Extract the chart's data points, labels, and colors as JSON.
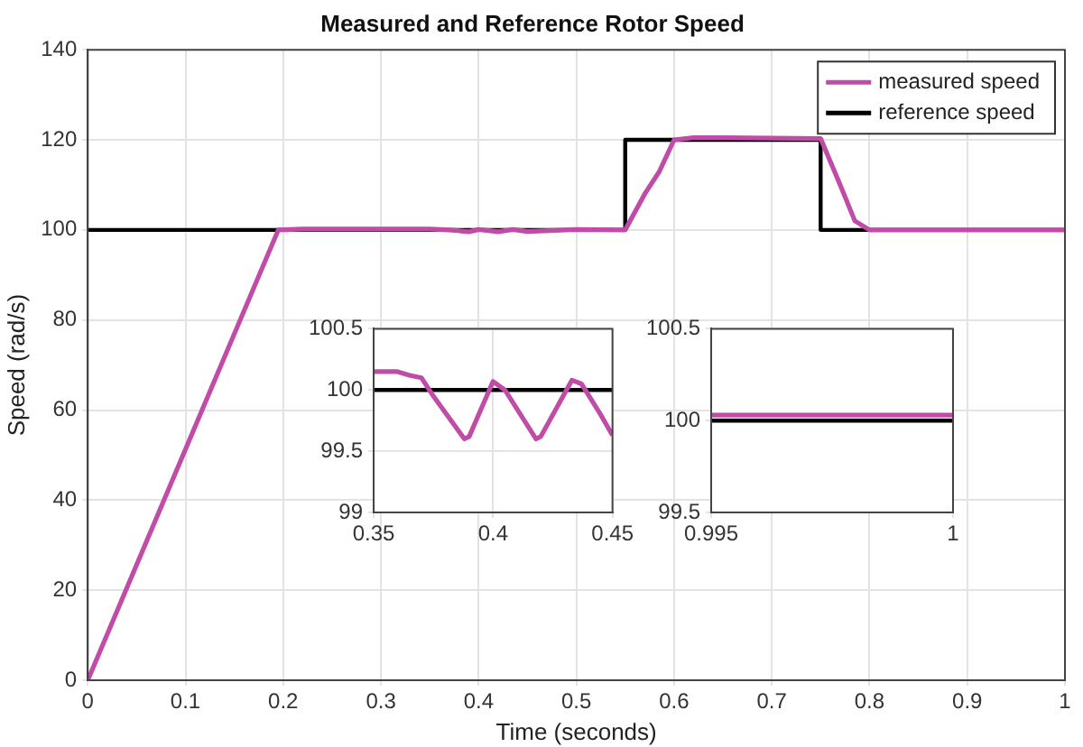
{
  "chart_data": [
    {
      "type": "line",
      "title": "Measured and Reference Rotor Speed",
      "xlabel": "Time (seconds)",
      "ylabel": "Speed (rad/s)",
      "xlim": [
        0,
        1
      ],
      "ylim": [
        0,
        140
      ],
      "xticks": [
        0,
        0.1,
        0.2,
        0.3,
        0.4,
        0.5,
        0.6,
        0.7,
        0.8,
        0.9,
        1
      ],
      "yticks": [
        0,
        20,
        40,
        60,
        80,
        100,
        120,
        140
      ],
      "grid": true,
      "legend": "top right",
      "marker": "none",
      "line_style": "solid",
      "series": [
        {
          "name": "measured speed",
          "color": "#c04ca8",
          "x": [
            0,
            0.195,
            0.22,
            0.35,
            0.37,
            0.39,
            0.4,
            0.42,
            0.435,
            0.45,
            0.5,
            0.55,
            0.57,
            0.585,
            0.6,
            0.62,
            0.65,
            0.75,
            0.77,
            0.785,
            0.8,
            1
          ],
          "values": [
            0,
            100,
            100.2,
            100.2,
            100,
            99.6,
            100.1,
            99.6,
            100.1,
            99.65,
            100.1,
            100,
            108,
            113,
            120,
            120.5,
            120.5,
            120.3,
            110,
            102,
            100,
            100
          ]
        },
        {
          "name": "reference speed",
          "color": "#000000",
          "x": [
            0,
            0.55,
            0.55,
            0.75,
            0.75,
            1
          ],
          "values": [
            100,
            100,
            120,
            120,
            100,
            100
          ]
        }
      ]
    },
    {
      "type": "line",
      "xlim": [
        0.35,
        0.45
      ],
      "ylim": [
        99,
        100.5
      ],
      "xticks": [
        0.35,
        0.4,
        0.45
      ],
      "yticks": [
        99,
        99.5,
        100,
        100.5
      ],
      "grid": true,
      "marker": "none",
      "line_style": "solid",
      "series": [
        {
          "color": "#c04ca8",
          "x": [
            0.35,
            0.36,
            0.365,
            0.37,
            0.375,
            0.388,
            0.39,
            0.4,
            0.405,
            0.418,
            0.42,
            0.433,
            0.437,
            0.445,
            0.45
          ],
          "values": [
            100.15,
            100.15,
            100.12,
            100.1,
            99.95,
            99.6,
            99.62,
            100.07,
            100,
            99.6,
            99.62,
            100.08,
            100.05,
            99.8,
            99.63
          ]
        },
        {
          "color": "#000000",
          "x": [
            0.35,
            0.45
          ],
          "values": [
            100,
            100
          ]
        }
      ]
    },
    {
      "type": "line",
      "xlim": [
        0.995,
        1
      ],
      "ylim": [
        99.5,
        100.5
      ],
      "xticks": [
        0.995,
        1
      ],
      "yticks": [
        99.5,
        100,
        100.5
      ],
      "grid": true,
      "marker": "none",
      "line_style": "solid",
      "series": [
        {
          "color": "#c04ca8",
          "x": [
            0.995,
            1
          ],
          "values": [
            100.03,
            100.03
          ]
        },
        {
          "color": "#000000",
          "x": [
            0.995,
            1
          ],
          "values": [
            100,
            100
          ]
        }
      ]
    }
  ]
}
